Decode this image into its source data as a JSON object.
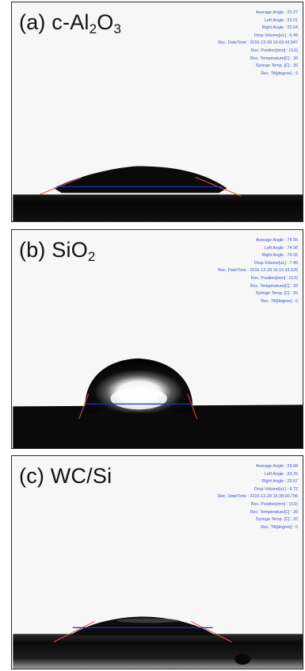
{
  "panels": [
    {
      "prefix": "(a) c-Al",
      "sub1": "2",
      "mid": "O",
      "sub2": "3",
      "rows": [
        "Average Angle : 23.27",
        "Left Angle : 23.01",
        "Right Angle : 23.54",
        "Drop Volume[uL] : 6.49",
        "Rec. DateTime : 2015-12-28 16:03:43.947",
        "Rec. Position[mm] : (0,0)",
        "Rec. Temperature[C] : 20",
        "Syringe Temp. [C] : 20",
        "Rec. Tilt[degree] : 0"
      ]
    },
    {
      "prefix": "(b) SiO",
      "sub1": "2",
      "rows": [
        "Average Angle : 74.55",
        "Left Angle : 74.56",
        "Right Angle : 74.55",
        "Drop Volume[uL] : 7.45",
        "Rec. DateTime : 2015-12-28 16:15:33.525",
        "Rec. Position[mm] : (0,0)",
        "Rec. Temperature[C] : 20",
        "Syringe Temp. [C] : 20",
        "Rec. Tilt[degree] : 0"
      ]
    },
    {
      "prefix": "(c) WC/Si",
      "rows": [
        "Average Angle : 23.68",
        "Left Angle : 23.70",
        "Right Angle : 23.67",
        "Drop Volume[uL] : 6.72",
        "Rec. DateTime : 2015-12-28 16:38:00.796",
        "Rec. Position[mm] : (0,0)",
        "Rec. Temperature[C] : 20",
        "Syringe Temp. [C] : 20",
        "Rec. Tilt[degree] : 0"
      ]
    }
  ],
  "colors": {
    "annotation": "#3b56c9",
    "baseline": "#1e2fd0",
    "tangent": "#e0523c",
    "substrate": "#0c0c0c",
    "background": "#f7f7f7"
  }
}
